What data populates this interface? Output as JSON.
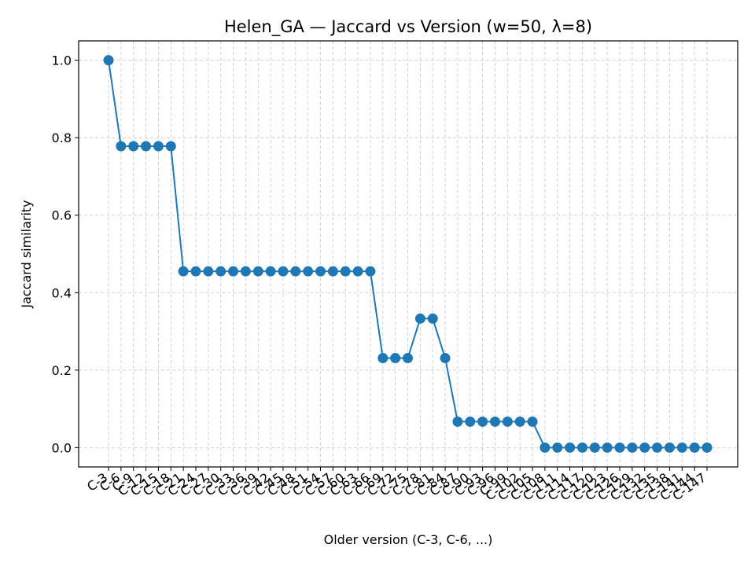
{
  "chart_data": {
    "type": "line",
    "title": "Helen_GA — Jaccard vs Version (w=50, λ=8)",
    "xlabel": "Older version (C-3, C-6, ...)",
    "ylabel": "Jaccard similarity",
    "ylim": [
      -0.05,
      1.05
    ],
    "yticks": [
      "0.0",
      "0.2",
      "0.4",
      "0.6",
      "0.8",
      "1.0"
    ],
    "grid": true,
    "line_color": "#1f77b4",
    "categories": [
      "C-3",
      "C-6",
      "C-9",
      "C-12",
      "C-15",
      "C-18",
      "C-21",
      "C-24",
      "C-27",
      "C-30",
      "C-33",
      "C-36",
      "C-39",
      "C-42",
      "C-45",
      "C-48",
      "C-51",
      "C-54",
      "C-57",
      "C-60",
      "C-63",
      "C-66",
      "C-69",
      "C-72",
      "C-75",
      "C-78",
      "C-81",
      "C-84",
      "C-87",
      "C-90",
      "C-93",
      "C-96",
      "C-99",
      "C-102",
      "C-105",
      "C-108",
      "C-111",
      "C-114",
      "C-117",
      "C-120",
      "C-123",
      "C-126",
      "C-129",
      "C-132",
      "C-135",
      "C-138",
      "C-141",
      "C-144",
      "C-147"
    ],
    "series": [
      {
        "values": [
          1.0,
          0.778,
          0.778,
          0.778,
          0.778,
          0.778,
          0.455,
          0.455,
          0.455,
          0.455,
          0.455,
          0.455,
          0.455,
          0.455,
          0.455,
          0.455,
          0.455,
          0.455,
          0.455,
          0.455,
          0.455,
          0.455,
          0.231,
          0.231,
          0.231,
          0.333,
          0.333,
          0.231,
          0.067,
          0.067,
          0.067,
          0.067,
          0.067,
          0.067,
          0.067,
          0.0,
          0.0,
          0.0,
          0.0,
          0.0,
          0.0,
          0.0,
          0.0,
          0.0,
          0.0,
          0.0,
          0.0,
          0.0,
          0.0
        ]
      }
    ]
  }
}
